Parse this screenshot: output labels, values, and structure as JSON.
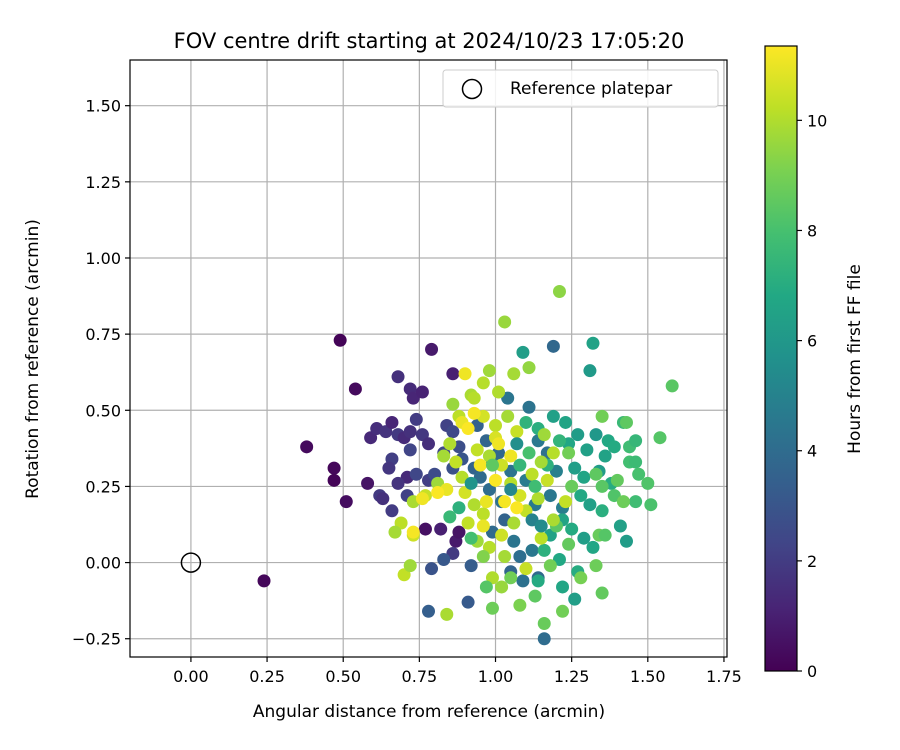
{
  "chart_data": {
    "type": "scatter",
    "title": "FOV centre drift starting at 2024/10/23 17:05:20",
    "xlabel": "Angular distance from reference (arcmin)",
    "ylabel": "Rotation from reference (arcmin)",
    "xlim": [
      -0.2,
      1.76
    ],
    "ylim": [
      -0.31,
      1.65
    ],
    "xticks": [
      0.0,
      0.25,
      0.5,
      0.75,
      1.0,
      1.25,
      1.5,
      1.75
    ],
    "xtick_labels": [
      "0.00",
      "0.25",
      "0.50",
      "0.75",
      "1.00",
      "1.25",
      "1.50",
      "1.75"
    ],
    "yticks": [
      -0.25,
      0.0,
      0.25,
      0.5,
      0.75,
      1.0,
      1.25,
      1.5
    ],
    "ytick_labels": [
      "−0.25",
      "0.00",
      "0.25",
      "0.50",
      "0.75",
      "1.00",
      "1.25",
      "1.50"
    ],
    "grid": true,
    "legend": {
      "placement": "upper-right",
      "entries": [
        "Reference platepar"
      ]
    },
    "reference_point": {
      "label": "Reference platepar",
      "x": 0.0,
      "y": 0.0,
      "marker": "open-circle"
    },
    "colorbar": {
      "label": "Hours from first FF file",
      "colormap": "viridis",
      "range": [
        0,
        11.35
      ],
      "ticks": [
        0,
        2,
        4,
        6,
        8,
        10
      ],
      "tick_labels": [
        "0",
        "2",
        "4",
        "6",
        "8",
        "10"
      ]
    },
    "points": [
      {
        "x": 0.49,
        "y": 0.73,
        "h": 0.1
      },
      {
        "x": 0.38,
        "y": 0.38,
        "h": 0.3
      },
      {
        "x": 0.47,
        "y": 0.31,
        "h": 0.2
      },
      {
        "x": 0.47,
        "y": 0.27,
        "h": 0.1
      },
      {
        "x": 0.51,
        "y": 0.2,
        "h": 0.4
      },
      {
        "x": 0.54,
        "y": 0.57,
        "h": 0.3
      },
      {
        "x": 0.24,
        "y": -0.06,
        "h": 0.2
      },
      {
        "x": 0.58,
        "y": 0.26,
        "h": 0.6
      },
      {
        "x": 0.79,
        "y": 0.7,
        "h": 0.8
      },
      {
        "x": 0.86,
        "y": 0.62,
        "h": 1.0
      },
      {
        "x": 0.72,
        "y": 0.57,
        "h": 1.4
      },
      {
        "x": 0.68,
        "y": 0.61,
        "h": 1.6
      },
      {
        "x": 0.73,
        "y": 0.54,
        "h": 1.2
      },
      {
        "x": 0.76,
        "y": 0.56,
        "h": 1.1
      },
      {
        "x": 0.59,
        "y": 0.41,
        "h": 1.3
      },
      {
        "x": 0.61,
        "y": 0.44,
        "h": 1.5
      },
      {
        "x": 0.64,
        "y": 0.43,
        "h": 1.7
      },
      {
        "x": 0.66,
        "y": 0.46,
        "h": 1.2
      },
      {
        "x": 0.68,
        "y": 0.42,
        "h": 1.9
      },
      {
        "x": 0.7,
        "y": 0.41,
        "h": 1.4
      },
      {
        "x": 0.72,
        "y": 0.43,
        "h": 1.6
      },
      {
        "x": 0.74,
        "y": 0.47,
        "h": 2.0
      },
      {
        "x": 0.76,
        "y": 0.42,
        "h": 1.8
      },
      {
        "x": 0.78,
        "y": 0.39,
        "h": 1.5
      },
      {
        "x": 0.66,
        "y": 0.34,
        "h": 2.1
      },
      {
        "x": 0.65,
        "y": 0.31,
        "h": 1.8
      },
      {
        "x": 0.71,
        "y": 0.28,
        "h": 1.3
      },
      {
        "x": 0.68,
        "y": 0.26,
        "h": 1.7
      },
      {
        "x": 0.71,
        "y": 0.22,
        "h": 2.2
      },
      {
        "x": 0.62,
        "y": 0.22,
        "h": 1.9
      },
      {
        "x": 0.63,
        "y": 0.21,
        "h": 1.6
      },
      {
        "x": 0.66,
        "y": 0.17,
        "h": 2.0
      },
      {
        "x": 0.72,
        "y": 0.37,
        "h": 2.3
      },
      {
        "x": 0.74,
        "y": 0.29,
        "h": 2.4
      },
      {
        "x": 0.78,
        "y": 0.27,
        "h": 2.1
      },
      {
        "x": 0.8,
        "y": 0.29,
        "h": 2.6
      },
      {
        "x": 0.84,
        "y": 0.45,
        "h": 2.2
      },
      {
        "x": 0.86,
        "y": 0.43,
        "h": 2.5
      },
      {
        "x": 0.88,
        "y": 0.38,
        "h": 2.7
      },
      {
        "x": 0.83,
        "y": 0.36,
        "h": 2.4
      },
      {
        "x": 0.86,
        "y": 0.31,
        "h": 2.8
      },
      {
        "x": 0.89,
        "y": 0.34,
        "h": 3.0
      },
      {
        "x": 0.82,
        "y": 0.11,
        "h": 1.0
      },
      {
        "x": 0.87,
        "y": 0.07,
        "h": 0.8
      },
      {
        "x": 0.88,
        "y": 0.1,
        "h": 0.6
      },
      {
        "x": 0.77,
        "y": 0.11,
        "h": 0.5
      },
      {
        "x": 0.86,
        "y": 0.03,
        "h": 1.9
      },
      {
        "x": 0.79,
        "y": -0.02,
        "h": 2.9
      },
      {
        "x": 0.91,
        "y": -0.13,
        "h": 3.2
      },
      {
        "x": 0.78,
        "y": -0.16,
        "h": 3.4
      },
      {
        "x": 0.92,
        "y": -0.01,
        "h": 3.3
      },
      {
        "x": 0.83,
        "y": 0.01,
        "h": 3.1
      },
      {
        "x": 0.94,
        "y": 0.45,
        "h": 3.5
      },
      {
        "x": 0.97,
        "y": 0.4,
        "h": 3.7
      },
      {
        "x": 0.93,
        "y": 0.31,
        "h": 3.6
      },
      {
        "x": 0.95,
        "y": 0.28,
        "h": 3.9
      },
      {
        "x": 0.99,
        "y": 0.33,
        "h": 4.1
      },
      {
        "x": 1.01,
        "y": 0.36,
        "h": 3.8
      },
      {
        "x": 0.98,
        "y": 0.24,
        "h": 4.0
      },
      {
        "x": 1.02,
        "y": 0.2,
        "h": 4.2
      },
      {
        "x": 1.05,
        "y": 0.3,
        "h": 4.3
      },
      {
        "x": 1.03,
        "y": 0.14,
        "h": 3.6
      },
      {
        "x": 0.99,
        "y": 0.1,
        "h": 3.9
      },
      {
        "x": 1.06,
        "y": 0.07,
        "h": 4.4
      },
      {
        "x": 1.08,
        "y": 0.02,
        "h": 4.1
      },
      {
        "x": 1.05,
        "y": -0.03,
        "h": 3.7
      },
      {
        "x": 1.12,
        "y": 0.04,
        "h": 4.5
      },
      {
        "x": 1.14,
        "y": -0.05,
        "h": 3.9
      },
      {
        "x": 1.09,
        "y": -0.06,
        "h": 4.2
      },
      {
        "x": 1.16,
        "y": -0.25,
        "h": 4.0
      },
      {
        "x": 1.19,
        "y": 0.71,
        "h": 3.8
      },
      {
        "x": 1.04,
        "y": 0.54,
        "h": 4.4
      },
      {
        "x": 1.11,
        "y": 0.51,
        "h": 4.3
      },
      {
        "x": 1.14,
        "y": 0.4,
        "h": 4.6
      },
      {
        "x": 1.17,
        "y": 0.36,
        "h": 4.2
      },
      {
        "x": 1.1,
        "y": 0.27,
        "h": 4.7
      },
      {
        "x": 1.2,
        "y": 0.3,
        "h": 4.9
      },
      {
        "x": 1.18,
        "y": 0.22,
        "h": 4.5
      },
      {
        "x": 1.22,
        "y": 0.18,
        "h": 4.8
      },
      {
        "x": 1.13,
        "y": 0.19,
        "h": 4.6
      },
      {
        "x": 1.09,
        "y": 0.69,
        "h": 6.3
      },
      {
        "x": 1.32,
        "y": 0.72,
        "h": 6.5
      },
      {
        "x": 1.31,
        "y": 0.63,
        "h": 6.1
      },
      {
        "x": 1.19,
        "y": 0.48,
        "h": 6.4
      },
      {
        "x": 1.23,
        "y": 0.46,
        "h": 6.6
      },
      {
        "x": 1.27,
        "y": 0.42,
        "h": 6.2
      },
      {
        "x": 1.24,
        "y": 0.39,
        "h": 6.7
      },
      {
        "x": 1.3,
        "y": 0.37,
        "h": 6.4
      },
      {
        "x": 1.33,
        "y": 0.42,
        "h": 6.0
      },
      {
        "x": 1.37,
        "y": 0.4,
        "h": 6.8
      },
      {
        "x": 1.36,
        "y": 0.35,
        "h": 6.5
      },
      {
        "x": 1.39,
        "y": 0.38,
        "h": 6.9
      },
      {
        "x": 1.26,
        "y": 0.31,
        "h": 6.3
      },
      {
        "x": 1.29,
        "y": 0.28,
        "h": 6.6
      },
      {
        "x": 1.34,
        "y": 0.3,
        "h": 6.2
      },
      {
        "x": 1.38,
        "y": 0.26,
        "h": 7.0
      },
      {
        "x": 1.28,
        "y": 0.22,
        "h": 6.8
      },
      {
        "x": 1.31,
        "y": 0.19,
        "h": 6.4
      },
      {
        "x": 1.35,
        "y": 0.17,
        "h": 7.1
      },
      {
        "x": 1.22,
        "y": 0.14,
        "h": 6.6
      },
      {
        "x": 1.25,
        "y": 0.11,
        "h": 6.9
      },
      {
        "x": 1.29,
        "y": 0.08,
        "h": 6.3
      },
      {
        "x": 1.32,
        "y": 0.05,
        "h": 6.7
      },
      {
        "x": 1.18,
        "y": 0.09,
        "h": 6.5
      },
      {
        "x": 1.16,
        "y": 0.04,
        "h": 7.2
      },
      {
        "x": 1.21,
        "y": 0.01,
        "h": 6.8
      },
      {
        "x": 1.41,
        "y": 0.12,
        "h": 6.4
      },
      {
        "x": 1.43,
        "y": 0.07,
        "h": 6.2
      },
      {
        "x": 1.27,
        "y": -0.03,
        "h": 7.0
      },
      {
        "x": 1.22,
        "y": -0.08,
        "h": 6.7
      },
      {
        "x": 1.26,
        "y": -0.12,
        "h": 6.3
      },
      {
        "x": 1.14,
        "y": -0.06,
        "h": 6.9
      },
      {
        "x": 1.1,
        "y": 0.46,
        "h": 7.3
      },
      {
        "x": 1.14,
        "y": 0.44,
        "h": 7.1
      },
      {
        "x": 1.21,
        "y": 0.4,
        "h": 7.4
      },
      {
        "x": 1.17,
        "y": 0.32,
        "h": 7.2
      },
      {
        "x": 1.42,
        "y": 0.46,
        "h": 7.6
      },
      {
        "x": 1.44,
        "y": 0.38,
        "h": 7.8
      },
      {
        "x": 1.46,
        "y": 0.4,
        "h": 7.5
      },
      {
        "x": 1.44,
        "y": 0.33,
        "h": 7.9
      },
      {
        "x": 1.46,
        "y": 0.33,
        "h": 7.7
      },
      {
        "x": 1.47,
        "y": 0.29,
        "h": 8.0
      },
      {
        "x": 1.5,
        "y": 0.26,
        "h": 8.2
      },
      {
        "x": 1.46,
        "y": 0.2,
        "h": 7.8
      },
      {
        "x": 1.51,
        "y": 0.19,
        "h": 8.1
      },
      {
        "x": 1.58,
        "y": 0.58,
        "h": 8.4
      },
      {
        "x": 1.54,
        "y": 0.41,
        "h": 8.3
      },
      {
        "x": 1.43,
        "y": 0.46,
        "h": 8.5
      },
      {
        "x": 1.4,
        "y": 0.27,
        "h": 8.6
      },
      {
        "x": 1.39,
        "y": 0.22,
        "h": 8.2
      },
      {
        "x": 1.42,
        "y": 0.2,
        "h": 8.8
      },
      {
        "x": 1.35,
        "y": 0.25,
        "h": 8.4
      },
      {
        "x": 1.35,
        "y": 0.48,
        "h": 8.9
      },
      {
        "x": 1.33,
        "y": 0.29,
        "h": 8.5
      },
      {
        "x": 1.34,
        "y": 0.09,
        "h": 8.7
      },
      {
        "x": 1.36,
        "y": 0.09,
        "h": 8.3
      },
      {
        "x": 1.33,
        "y": -0.01,
        "h": 8.8
      },
      {
        "x": 1.35,
        "y": -0.1,
        "h": 8.6
      },
      {
        "x": 1.28,
        "y": -0.05,
        "h": 9.0
      },
      {
        "x": 1.22,
        "y": -0.16,
        "h": 8.9
      },
      {
        "x": 1.16,
        "y": -0.2,
        "h": 8.7
      },
      {
        "x": 1.08,
        "y": -0.14,
        "h": 9.1
      },
      {
        "x": 0.99,
        "y": -0.15,
        "h": 8.8
      },
      {
        "x": 1.13,
        "y": -0.11,
        "h": 8.5
      },
      {
        "x": 1.18,
        "y": -0.01,
        "h": 8.9
      },
      {
        "x": 1.24,
        "y": 0.06,
        "h": 8.6
      },
      {
        "x": 1.2,
        "y": 0.12,
        "h": 8.4
      },
      {
        "x": 1.25,
        "y": 0.25,
        "h": 8.7
      },
      {
        "x": 1.21,
        "y": 0.89,
        "h": 9.4
      },
      {
        "x": 1.03,
        "y": 0.79,
        "h": 9.6
      },
      {
        "x": 1.06,
        "y": 0.62,
        "h": 9.8
      },
      {
        "x": 1.11,
        "y": 0.64,
        "h": 9.5
      },
      {
        "x": 0.98,
        "y": 0.63,
        "h": 9.7
      },
      {
        "x": 0.92,
        "y": 0.55,
        "h": 9.9
      },
      {
        "x": 0.93,
        "y": 0.54,
        "h": 10.1
      },
      {
        "x": 0.86,
        "y": 0.52,
        "h": 9.6
      },
      {
        "x": 0.88,
        "y": 0.48,
        "h": 10.2
      },
      {
        "x": 0.85,
        "y": 0.39,
        "h": 10.0
      },
      {
        "x": 0.83,
        "y": 0.35,
        "h": 9.8
      },
      {
        "x": 0.87,
        "y": 0.33,
        "h": 10.3
      },
      {
        "x": 0.89,
        "y": 0.28,
        "h": 10.1
      },
      {
        "x": 0.81,
        "y": 0.26,
        "h": 9.7
      },
      {
        "x": 0.77,
        "y": 0.22,
        "h": 10.4
      },
      {
        "x": 0.73,
        "y": 0.2,
        "h": 9.9
      },
      {
        "x": 0.69,
        "y": 0.13,
        "h": 10.2
      },
      {
        "x": 0.67,
        "y": 0.1,
        "h": 9.8
      },
      {
        "x": 0.73,
        "y": 0.09,
        "h": 10.5
      },
      {
        "x": 0.7,
        "y": -0.04,
        "h": 10.3
      },
      {
        "x": 0.72,
        "y": -0.01,
        "h": 9.7
      },
      {
        "x": 0.84,
        "y": -0.17,
        "h": 9.9
      },
      {
        "x": 0.96,
        "y": 0.59,
        "h": 10.1
      },
      {
        "x": 1.01,
        "y": 0.56,
        "h": 10.0
      },
      {
        "x": 0.96,
        "y": 0.48,
        "h": 10.6
      },
      {
        "x": 1.0,
        "y": 0.45,
        "h": 10.2
      },
      {
        "x": 1.04,
        "y": 0.48,
        "h": 9.8
      },
      {
        "x": 1.07,
        "y": 0.43,
        "h": 10.4
      },
      {
        "x": 1.0,
        "y": 0.41,
        "h": 10.7
      },
      {
        "x": 0.94,
        "y": 0.37,
        "h": 10.3
      },
      {
        "x": 0.98,
        "y": 0.35,
        "h": 9.9
      },
      {
        "x": 1.02,
        "y": 0.32,
        "h": 10.5
      },
      {
        "x": 1.05,
        "y": 0.26,
        "h": 10.1
      },
      {
        "x": 1.08,
        "y": 0.22,
        "h": 10.6
      },
      {
        "x": 1.12,
        "y": 0.29,
        "h": 10.2
      },
      {
        "x": 1.15,
        "y": 0.33,
        "h": 9.8
      },
      {
        "x": 1.17,
        "y": 0.27,
        "h": 10.4
      },
      {
        "x": 1.14,
        "y": 0.21,
        "h": 10.0
      },
      {
        "x": 1.1,
        "y": 0.17,
        "h": 10.3
      },
      {
        "x": 1.06,
        "y": 0.13,
        "h": 9.9
      },
      {
        "x": 1.02,
        "y": 0.09,
        "h": 10.5
      },
      {
        "x": 0.98,
        "y": 0.05,
        "h": 10.1
      },
      {
        "x": 0.94,
        "y": 0.07,
        "h": 9.7
      },
      {
        "x": 0.91,
        "y": 0.13,
        "h": 10.3
      },
      {
        "x": 0.93,
        "y": 0.19,
        "h": 10.0
      },
      {
        "x": 0.9,
        "y": 0.23,
        "h": 10.6
      },
      {
        "x": 0.96,
        "y": 0.16,
        "h": 10.2
      },
      {
        "x": 1.03,
        "y": 0.02,
        "h": 9.8
      },
      {
        "x": 1.1,
        "y": -0.02,
        "h": 10.4
      },
      {
        "x": 0.99,
        "y": -0.05,
        "h": 10.0
      },
      {
        "x": 1.02,
        "y": -0.08,
        "h": 9.6
      },
      {
        "x": 1.15,
        "y": 0.08,
        "h": 10.2
      },
      {
        "x": 1.19,
        "y": 0.14,
        "h": 9.9
      },
      {
        "x": 1.23,
        "y": 0.2,
        "h": 10.3
      },
      {
        "x": 1.16,
        "y": 0.42,
        "h": 9.7
      },
      {
        "x": 1.19,
        "y": 0.36,
        "h": 10.1
      },
      {
        "x": 0.9,
        "y": 0.62,
        "h": 11.1
      },
      {
        "x": 0.93,
        "y": 0.49,
        "h": 11.2
      },
      {
        "x": 0.89,
        "y": 0.46,
        "h": 11.0
      },
      {
        "x": 0.91,
        "y": 0.44,
        "h": 11.3
      },
      {
        "x": 1.01,
        "y": 0.39,
        "h": 11.1
      },
      {
        "x": 0.95,
        "y": 0.32,
        "h": 11.2
      },
      {
        "x": 0.84,
        "y": 0.24,
        "h": 11.0
      },
      {
        "x": 0.81,
        "y": 0.23,
        "h": 11.3
      },
      {
        "x": 0.76,
        "y": 0.21,
        "h": 11.1
      },
      {
        "x": 0.73,
        "y": 0.1,
        "h": 11.2
      },
      {
        "x": 0.97,
        "y": 0.2,
        "h": 11.0
      },
      {
        "x": 1.0,
        "y": 0.27,
        "h": 11.3
      },
      {
        "x": 1.05,
        "y": 0.35,
        "h": 11.1
      },
      {
        "x": 1.03,
        "y": 0.2,
        "h": 11.2
      },
      {
        "x": 0.96,
        "y": 0.12,
        "h": 11.0
      },
      {
        "x": 1.07,
        "y": 0.18,
        "h": 11.3
      },
      {
        "x": 0.99,
        "y": 0.32,
        "h": 8.5
      },
      {
        "x": 1.11,
        "y": 0.36,
        "h": 8.0
      },
      {
        "x": 1.08,
        "y": 0.32,
        "h": 7.5
      },
      {
        "x": 1.13,
        "y": 0.25,
        "h": 7.8
      },
      {
        "x": 1.05,
        "y": 0.24,
        "h": 5.2
      },
      {
        "x": 1.07,
        "y": 0.39,
        "h": 5.6
      },
      {
        "x": 1.12,
        "y": 0.14,
        "h": 5.0
      },
      {
        "x": 1.15,
        "y": 0.12,
        "h": 5.4
      },
      {
        "x": 0.92,
        "y": 0.26,
        "h": 5.8
      },
      {
        "x": 0.88,
        "y": 0.18,
        "h": 7.2
      },
      {
        "x": 0.85,
        "y": 0.15,
        "h": 7.6
      },
      {
        "x": 0.92,
        "y": 0.08,
        "h": 7.9
      },
      {
        "x": 0.97,
        "y": -0.08,
        "h": 8.3
      },
      {
        "x": 1.05,
        "y": -0.05,
        "h": 8.9
      },
      {
        "x": 0.96,
        "y": 0.02,
        "h": 9.2
      },
      {
        "x": 1.24,
        "y": 0.36,
        "h": 8.9
      }
    ]
  }
}
